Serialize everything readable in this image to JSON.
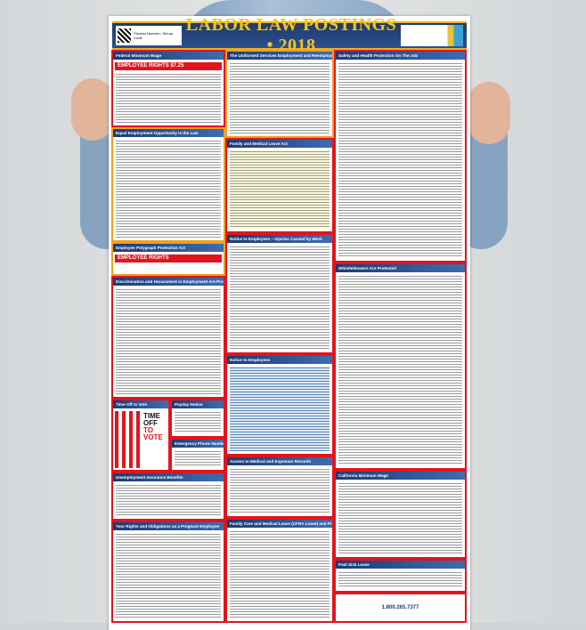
{
  "poster": {
    "title": "LABOR LAW POSTINGS • 2018",
    "qr_caption": "Product Number / Set-up Code",
    "sections": {
      "federal_min_wage": {
        "title": "Federal Minimum Wage",
        "banner": "EMPLOYEE RIGHTS $7.25"
      },
      "eeo": {
        "title": "Equal Employment Opportunity is the Law"
      },
      "polygraph": {
        "title": "Employee Polygraph Protection Act",
        "banner": "EMPLOYEE RIGHTS"
      },
      "discrimination": {
        "title": "Discrimination and Harassment in Employment Are Prohibited by Law"
      },
      "time_off_vote": {
        "title": "Time Off to Vote",
        "headline1": "TIME OFF",
        "headline2": "TO VOTE"
      },
      "payday": {
        "title": "Payday Notice"
      },
      "emergency": {
        "title": "Emergency Phone Numbers"
      },
      "unemployment": {
        "title": "Unemployment Insurance Benefits"
      },
      "pregnant": {
        "title": "Your Rights and Obligations as a Pregnant Employee"
      },
      "userra": {
        "title": "The Uniformed Services Employment and Reemployment Rights Act"
      },
      "fmla": {
        "title": "Family and Medical Leave Act"
      },
      "injuries": {
        "title": "Notice to Employees – Injuries Caused by Work"
      },
      "notice": {
        "title": "Notice to Employees"
      },
      "medical_records": {
        "title": "Access to Medical and Exposure Records"
      },
      "cfra": {
        "title": "Family Care and Medical Leave (CFRA Leave) and Pregnancy Disability Leave"
      },
      "osha": {
        "title": "Safety and Health Protection On The Job"
      },
      "whistle": {
        "title": "Whistleblowers Are Protected"
      },
      "ca_min_wage": {
        "title": "California Minimum Wage"
      },
      "sick_leave": {
        "title": "Paid Sick Leave"
      }
    },
    "footer_phone": "1.800.265.7377"
  },
  "colors": {
    "header_blue": "#1f3a6e",
    "title_gold": "#f2c418",
    "border_red": "#e3141d",
    "wall": "#d4d7d9",
    "shirt": "#8aa6c4"
  }
}
